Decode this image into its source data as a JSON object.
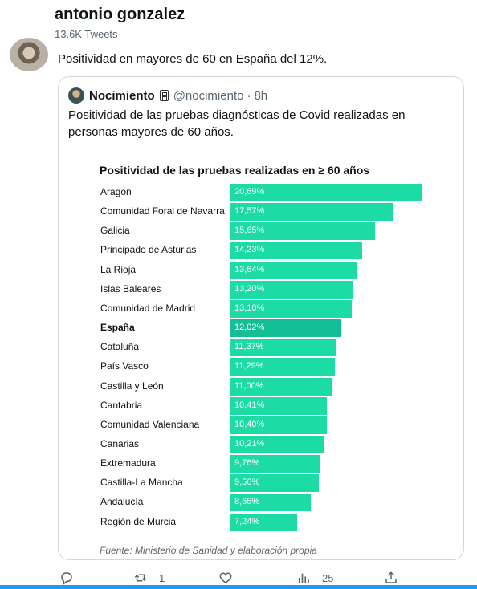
{
  "profile": {
    "name": "antonio gonzalez",
    "tweet_count": "13.6K Tweets"
  },
  "tweet": {
    "text": "Positividad en mayores de 60 en España del 12%."
  },
  "quote": {
    "name": "Nocimiento",
    "emoji_icon": "mobile-phone-icon",
    "handle": "@nocimiento",
    "separator": "·",
    "time": "8h",
    "text": "Positividad de las pruebas diagnósticas de Covid realizadas en personas mayores de 60 años."
  },
  "chart_data": {
    "type": "bar",
    "orientation": "horizontal",
    "title": "Positividad de las pruebas realizadas en ≥ 60 años",
    "categories": [
      "Aragón",
      "Comunidad Foral de Navarra",
      "Galicia",
      "Principado de Asturias",
      "La Rioja",
      "Islas Baleares",
      "Comunidad de Madrid",
      "España",
      "Cataluña",
      "País Vasco",
      "Castilla y León",
      "Cantabria",
      "Comunidad Valenciana",
      "Canarias",
      "Extremadura",
      "Castilla-La Mancha",
      "Andalucía",
      "Región de Murcia"
    ],
    "values": [
      20.69,
      17.57,
      15.65,
      14.23,
      13.64,
      13.2,
      13.1,
      12.02,
      11.37,
      11.29,
      11.0,
      10.41,
      10.4,
      10.21,
      9.76,
      9.56,
      8.65,
      7.24
    ],
    "value_labels": [
      "20,69%",
      "17,57%",
      "15,65%",
      "14,23%",
      "13,64%",
      "13,20%",
      "13,10%",
      "12,02%",
      "11,37%",
      "11,29%",
      "11,00%",
      "10,41%",
      "10,40%",
      "10,21%",
      "9,76%",
      "9,56%",
      "8,65%",
      "7,24%"
    ],
    "highlight": "España",
    "bar_color": "#1ddba4",
    "highlight_color": "#15bf96",
    "source": "Fuente: Ministerio de Sanidad y elaboración propia"
  },
  "actions": {
    "reply_icon": "reply-icon",
    "retweet_icon": "retweet-icon",
    "retweet_count": "1",
    "like_icon": "heart-icon",
    "views_icon": "views-chart-icon",
    "views_count": "25",
    "share_icon": "share-icon"
  },
  "colors": {
    "accent": "#1d9bf0",
    "secondary_text": "#536471",
    "border": "#cfd9de"
  }
}
